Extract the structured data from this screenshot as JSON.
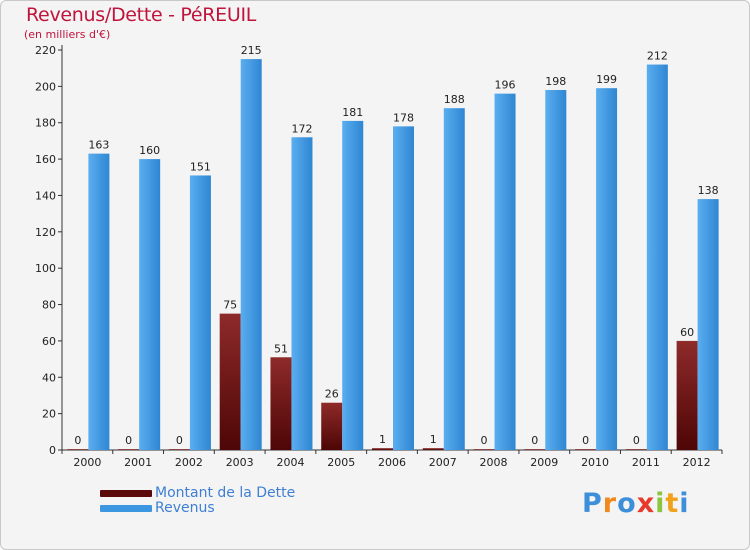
{
  "header": {
    "title": "Revenus/Dette - PéREUIL",
    "subtitle": "(en milliers d'€)"
  },
  "chart_data": {
    "type": "bar",
    "title": "Revenus/Dette - PéREUIL",
    "subtitle": "(en milliers d'€)",
    "xlabel": "",
    "ylabel": "",
    "ylim": [
      0,
      220
    ],
    "yticks": [
      0,
      20,
      40,
      60,
      80,
      100,
      120,
      140,
      160,
      180,
      200,
      220
    ],
    "grid": false,
    "legend_position": "bottom-left",
    "categories": [
      "2000",
      "2001",
      "2002",
      "2003",
      "2004",
      "2005",
      "2006",
      "2007",
      "2008",
      "2009",
      "2010",
      "2011",
      "2012"
    ],
    "series": [
      {
        "name": "Montant de la Dette",
        "color": "#7a1a1a",
        "values": [
          0,
          0,
          0,
          75,
          51,
          26,
          1,
          1,
          0,
          0,
          0,
          0,
          60
        ]
      },
      {
        "name": "Revenus",
        "color": "#3d97e0",
        "values": [
          163,
          160,
          151,
          215,
          172,
          181,
          178,
          188,
          196,
          198,
          199,
          212,
          138
        ]
      }
    ]
  },
  "legend": {
    "items": [
      {
        "label": "Montant de la Dette",
        "color": "#5a0a0a"
      },
      {
        "label": "Revenus",
        "color": "#3d97e0"
      }
    ]
  },
  "logo": {
    "text": "Proxiti",
    "letter_colors": [
      "#3d8fd9",
      "#f08a1c",
      "#3d8fd9",
      "#e83a2c",
      "#8cc63e",
      "#f0a21c",
      "#3d8fd9"
    ]
  }
}
